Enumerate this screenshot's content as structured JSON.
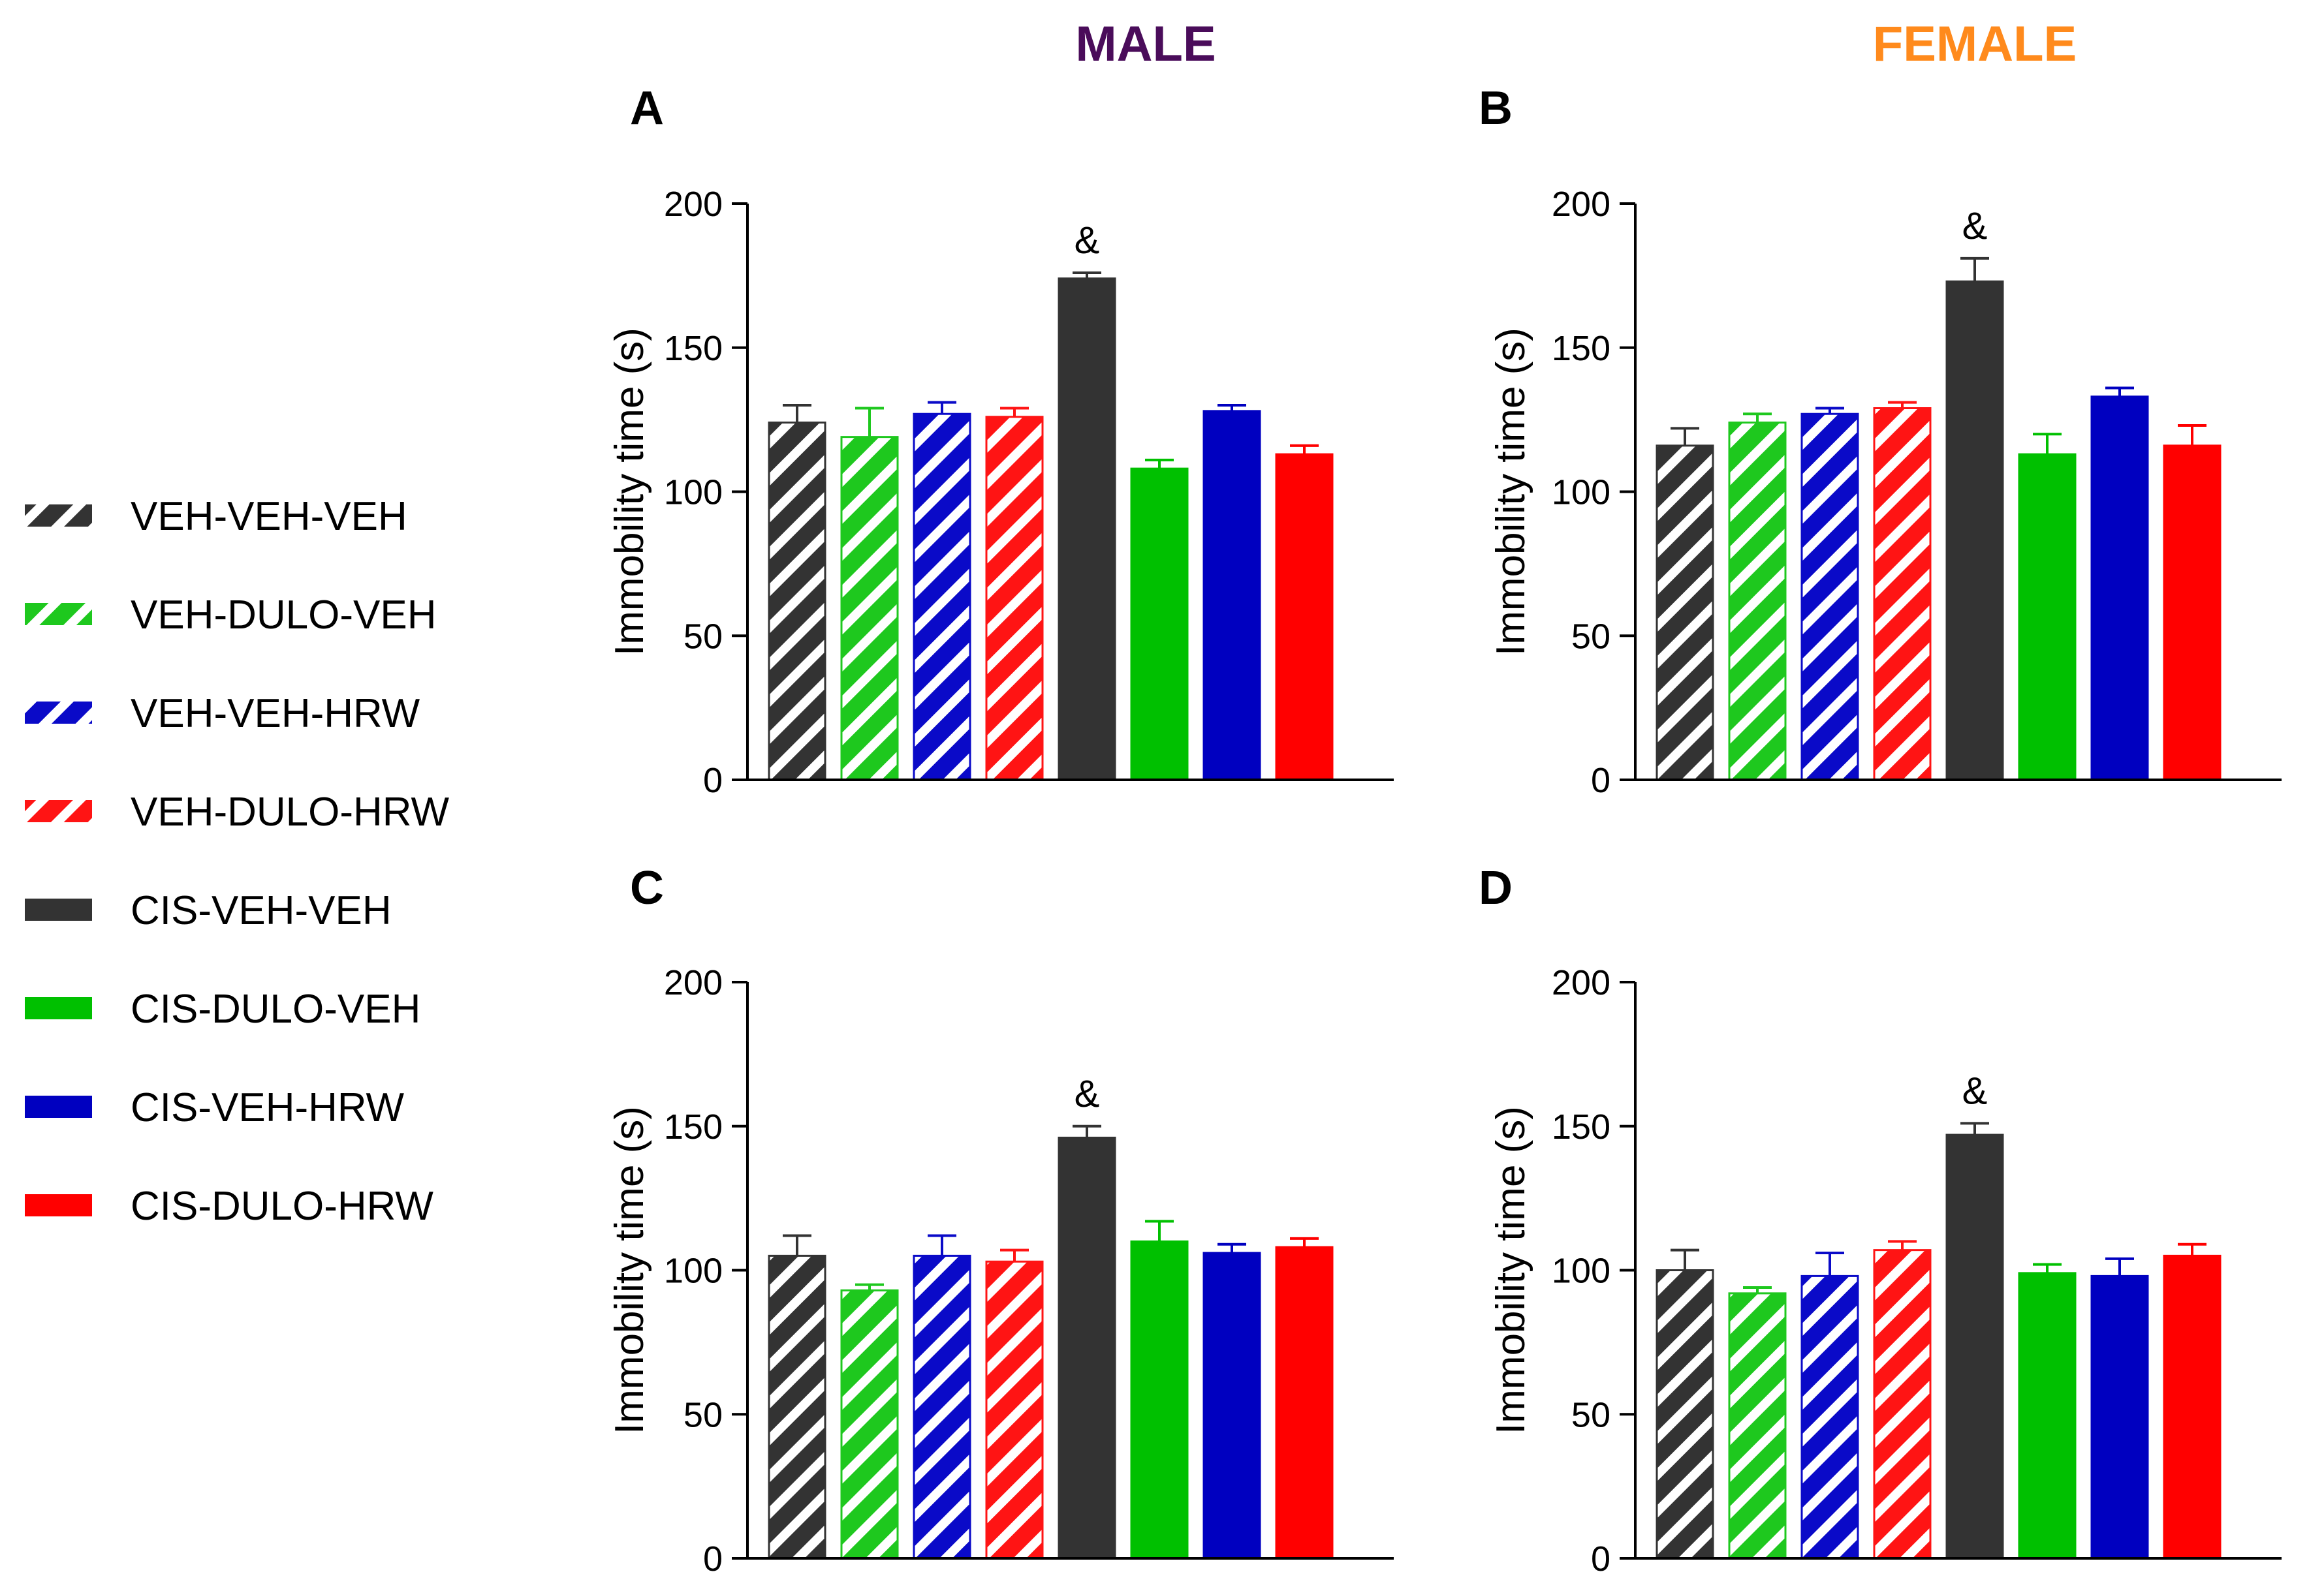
{
  "figure": {
    "column_headers": [
      {
        "label": "MALE",
        "color": "#4a0c5a"
      },
      {
        "label": "FEMALE",
        "color": "#ff8a1c"
      }
    ]
  },
  "legend": {
    "items": [
      {
        "label": "VEH-VEH-VEH",
        "color": "#333333",
        "pattern": "hatched"
      },
      {
        "label": "VEH-DULO-VEH",
        "color": "#1ec81e",
        "pattern": "hatched"
      },
      {
        "label": "VEH-VEH-HRW",
        "color": "#0a0ac8",
        "pattern": "hatched"
      },
      {
        "label": "VEH-DULO-HRW",
        "color": "#ff1414",
        "pattern": "hatched"
      },
      {
        "label": "CIS-VEH-VEH",
        "color": "#333333",
        "pattern": "solid"
      },
      {
        "label": "CIS-DULO-VEH",
        "color": "#00c000",
        "pattern": "solid"
      },
      {
        "label": "CIS-VEH-HRW",
        "color": "#0000c0",
        "pattern": "solid"
      },
      {
        "label": "CIS-DULO-HRW",
        "color": "#ff0000",
        "pattern": "solid"
      }
    ]
  },
  "chart_data": [
    {
      "panel": "A",
      "sex": "MALE",
      "type": "bar",
      "ylabel": "Immobility time (s)",
      "ylim": [
        0,
        200
      ],
      "yticks": [
        "0",
        "50",
        "100",
        "150",
        "200"
      ],
      "categories": [
        "VEH-VEH-VEH",
        "VEH-DULO-VEH",
        "VEH-VEH-HRW",
        "VEH-DULO-HRW",
        "CIS-VEH-VEH",
        "CIS-DULO-VEH",
        "CIS-VEH-HRW",
        "CIS-DULO-HRW"
      ],
      "values": [
        124,
        119,
        127,
        126,
        174,
        108,
        128,
        113
      ],
      "errors": [
        6,
        10,
        4,
        3,
        2,
        3,
        2,
        3
      ],
      "annotations": [
        {
          "bar": 4,
          "text": "&"
        }
      ]
    },
    {
      "panel": "B",
      "sex": "FEMALE",
      "type": "bar",
      "ylabel": "Immobility time (s)",
      "ylim": [
        0,
        200
      ],
      "yticks": [
        "0",
        "50",
        "100",
        "150",
        "200"
      ],
      "categories": [
        "VEH-VEH-VEH",
        "VEH-DULO-VEH",
        "VEH-VEH-HRW",
        "VEH-DULO-HRW",
        "CIS-VEH-VEH",
        "CIS-DULO-VEH",
        "CIS-VEH-HRW",
        "CIS-DULO-HRW"
      ],
      "values": [
        116,
        124,
        127,
        129,
        173,
        113,
        133,
        116
      ],
      "errors": [
        6,
        3,
        2,
        2,
        8,
        7,
        3,
        7
      ],
      "annotations": [
        {
          "bar": 4,
          "text": "&"
        }
      ]
    },
    {
      "panel": "C",
      "sex": "MALE",
      "type": "bar",
      "ylabel": "Immobility time (s)",
      "ylim": [
        0,
        200
      ],
      "yticks": [
        "0",
        "50",
        "100",
        "150",
        "200"
      ],
      "categories": [
        "VEH-VEH-VEH",
        "VEH-DULO-VEH",
        "VEH-VEH-HRW",
        "VEH-DULO-HRW",
        "CIS-VEH-VEH",
        "CIS-DULO-VEH",
        "CIS-VEH-HRW",
        "CIS-DULO-HRW"
      ],
      "values": [
        105,
        93,
        105,
        103,
        146,
        110,
        106,
        108
      ],
      "errors": [
        7,
        2,
        7,
        4,
        4,
        7,
        3,
        3
      ],
      "annotations": [
        {
          "bar": 4,
          "text": "&"
        }
      ]
    },
    {
      "panel": "D",
      "sex": "FEMALE",
      "type": "bar",
      "ylabel": "Immobility time (s)",
      "ylim": [
        0,
        200
      ],
      "yticks": [
        "0",
        "50",
        "100",
        "150",
        "200"
      ],
      "categories": [
        "VEH-VEH-VEH",
        "VEH-DULO-VEH",
        "VEH-VEH-HRW",
        "VEH-DULO-HRW",
        "CIS-VEH-VEH",
        "CIS-DULO-VEH",
        "CIS-VEH-HRW",
        "CIS-DULO-HRW"
      ],
      "values": [
        100,
        92,
        98,
        107,
        147,
        99,
        98,
        105
      ],
      "errors": [
        7,
        2,
        8,
        3,
        4,
        3,
        6,
        4
      ],
      "annotations": [
        {
          "bar": 4,
          "text": "&"
        }
      ]
    }
  ]
}
